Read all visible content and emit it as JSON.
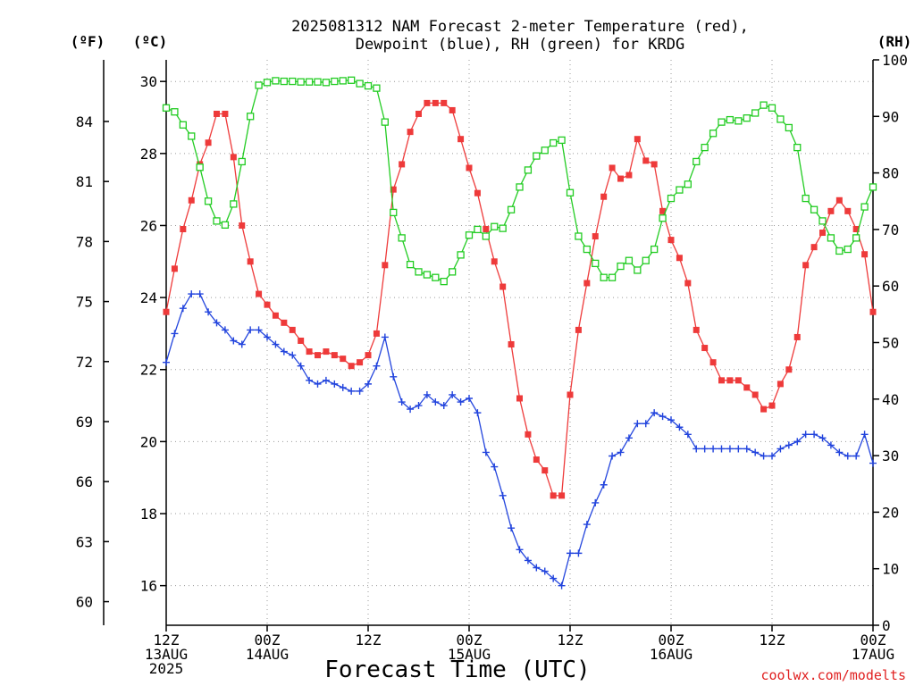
{
  "title_lines": [
    "2025081312 NAM Forecast 2-meter Temperature (red),",
    "Dewpoint (blue), RH (green) for KRDG"
  ],
  "units": {
    "fahrenheit": "(ºF)",
    "celsius": "(ºC)",
    "rh": "(RH)"
  },
  "xlabel": "Forecast Time (UTC)",
  "credit": "coolwx.com/modelts",
  "colors": {
    "temperature": "#ee3a3a",
    "dewpoint": "#2244dd",
    "rh": "#22cc22"
  },
  "chart_data": {
    "type": "line",
    "x_unit": "hours after 2025-08-13 12Z",
    "x_range": [
      0,
      84
    ],
    "x_ticks": [
      {
        "x": 0,
        "lines": [
          "12Z",
          "13AUG",
          "2025"
        ]
      },
      {
        "x": 12,
        "lines": [
          "00Z",
          "14AUG"
        ]
      },
      {
        "x": 24,
        "lines": [
          "12Z"
        ]
      },
      {
        "x": 36,
        "lines": [
          "00Z",
          "15AUG"
        ]
      },
      {
        "x": 48,
        "lines": [
          "12Z"
        ]
      },
      {
        "x": 60,
        "lines": [
          "00Z",
          "16AUG"
        ]
      },
      {
        "x": 72,
        "lines": [
          "12Z"
        ]
      },
      {
        "x": 84,
        "lines": [
          "00Z",
          "17AUG"
        ]
      }
    ],
    "y_celsius": {
      "range": [
        14.9,
        30.6
      ],
      "ticks": [
        16,
        18,
        20,
        22,
        24,
        26,
        28,
        30
      ]
    },
    "y_fahrenheit": {
      "ticks": [
        60,
        63,
        66,
        69,
        72,
        75,
        78,
        81,
        84
      ]
    },
    "y_rh": {
      "range": [
        0,
        100
      ],
      "ticks": [
        0,
        10,
        20,
        30,
        40,
        50,
        60,
        70,
        80,
        90,
        100
      ]
    },
    "grid": true,
    "series": [
      {
        "name": "Temperature",
        "axis": "celsius",
        "marker": "filled-square",
        "points": [
          [
            0,
            23.6
          ],
          [
            1,
            24.8
          ],
          [
            2,
            25.9
          ],
          [
            3,
            26.7
          ],
          [
            4,
            27.7
          ],
          [
            5,
            28.3
          ],
          [
            6,
            29.1
          ],
          [
            7,
            29.1
          ],
          [
            8,
            27.9
          ],
          [
            9,
            26.0
          ],
          [
            10,
            25.0
          ],
          [
            11,
            24.1
          ],
          [
            12,
            23.8
          ],
          [
            13,
            23.5
          ],
          [
            14,
            23.3
          ],
          [
            15,
            23.1
          ],
          [
            16,
            22.8
          ],
          [
            17,
            22.5
          ],
          [
            18,
            22.4
          ],
          [
            19,
            22.5
          ],
          [
            20,
            22.4
          ],
          [
            21,
            22.3
          ],
          [
            22,
            22.1
          ],
          [
            23,
            22.2
          ],
          [
            24,
            22.4
          ],
          [
            25,
            23.0
          ],
          [
            26,
            24.9
          ],
          [
            27,
            27.0
          ],
          [
            28,
            27.7
          ],
          [
            29,
            28.6
          ],
          [
            30,
            29.1
          ],
          [
            31,
            29.4
          ],
          [
            32,
            29.4
          ],
          [
            33,
            29.4
          ],
          [
            34,
            29.2
          ],
          [
            35,
            28.4
          ],
          [
            36,
            27.6
          ],
          [
            37,
            26.9
          ],
          [
            38,
            25.9
          ],
          [
            39,
            25.0
          ],
          [
            40,
            24.3
          ],
          [
            41,
            22.7
          ],
          [
            42,
            21.2
          ],
          [
            43,
            20.2
          ],
          [
            44,
            19.5
          ],
          [
            45,
            19.2
          ],
          [
            46,
            18.5
          ],
          [
            47,
            18.5
          ],
          [
            48,
            21.3
          ],
          [
            49,
            23.1
          ],
          [
            50,
            24.4
          ],
          [
            51,
            25.7
          ],
          [
            52,
            26.8
          ],
          [
            53,
            27.6
          ],
          [
            54,
            27.3
          ],
          [
            55,
            27.4
          ],
          [
            56,
            28.4
          ],
          [
            57,
            27.8
          ],
          [
            58,
            27.7
          ],
          [
            59,
            26.4
          ],
          [
            60,
            25.6
          ],
          [
            61,
            25.1
          ],
          [
            62,
            24.4
          ],
          [
            63,
            23.1
          ],
          [
            64,
            22.6
          ],
          [
            65,
            22.2
          ],
          [
            66,
            21.7
          ],
          [
            67,
            21.7
          ],
          [
            68,
            21.7
          ],
          [
            69,
            21.5
          ],
          [
            70,
            21.3
          ],
          [
            71,
            20.9
          ],
          [
            72,
            21.0
          ],
          [
            73,
            21.6
          ],
          [
            74,
            22.0
          ],
          [
            75,
            22.9
          ],
          [
            76,
            24.9
          ],
          [
            77,
            25.4
          ],
          [
            78,
            25.8
          ],
          [
            79,
            26.4
          ],
          [
            80,
            26.7
          ],
          [
            81,
            26.4
          ],
          [
            82,
            25.9
          ],
          [
            83,
            25.2
          ],
          [
            84,
            23.6
          ]
        ]
      },
      {
        "name": "Dewpoint",
        "axis": "celsius",
        "marker": "plus",
        "points": [
          [
            0,
            22.2
          ],
          [
            1,
            23.0
          ],
          [
            2,
            23.7
          ],
          [
            3,
            24.1
          ],
          [
            4,
            24.1
          ],
          [
            5,
            23.6
          ],
          [
            6,
            23.3
          ],
          [
            7,
            23.1
          ],
          [
            8,
            22.8
          ],
          [
            9,
            22.7
          ],
          [
            10,
            23.1
          ],
          [
            11,
            23.1
          ],
          [
            12,
            22.9
          ],
          [
            13,
            22.7
          ],
          [
            14,
            22.5
          ],
          [
            15,
            22.4
          ],
          [
            16,
            22.1
          ],
          [
            17,
            21.7
          ],
          [
            18,
            21.6
          ],
          [
            19,
            21.7
          ],
          [
            20,
            21.6
          ],
          [
            21,
            21.5
          ],
          [
            22,
            21.4
          ],
          [
            23,
            21.4
          ],
          [
            24,
            21.6
          ],
          [
            25,
            22.1
          ],
          [
            26,
            22.9
          ],
          [
            27,
            21.8
          ],
          [
            28,
            21.1
          ],
          [
            29,
            20.9
          ],
          [
            30,
            21.0
          ],
          [
            31,
            21.3
          ],
          [
            32,
            21.1
          ],
          [
            33,
            21.0
          ],
          [
            34,
            21.3
          ],
          [
            35,
            21.1
          ],
          [
            36,
            21.2
          ],
          [
            37,
            20.8
          ],
          [
            38,
            19.7
          ],
          [
            39,
            19.3
          ],
          [
            40,
            18.5
          ],
          [
            41,
            17.6
          ],
          [
            42,
            17.0
          ],
          [
            43,
            16.7
          ],
          [
            44,
            16.5
          ],
          [
            45,
            16.4
          ],
          [
            46,
            16.2
          ],
          [
            47,
            16.0
          ],
          [
            48,
            16.9
          ],
          [
            49,
            16.9
          ],
          [
            50,
            17.7
          ],
          [
            51,
            18.3
          ],
          [
            52,
            18.8
          ],
          [
            53,
            19.6
          ],
          [
            54,
            19.7
          ],
          [
            55,
            20.1
          ],
          [
            56,
            20.5
          ],
          [
            57,
            20.5
          ],
          [
            58,
            20.8
          ],
          [
            59,
            20.7
          ],
          [
            60,
            20.6
          ],
          [
            61,
            20.4
          ],
          [
            62,
            20.2
          ],
          [
            63,
            19.8
          ],
          [
            64,
            19.8
          ],
          [
            65,
            19.8
          ],
          [
            66,
            19.8
          ],
          [
            67,
            19.8
          ],
          [
            68,
            19.8
          ],
          [
            69,
            19.8
          ],
          [
            70,
            19.7
          ],
          [
            71,
            19.6
          ],
          [
            72,
            19.6
          ],
          [
            73,
            19.8
          ],
          [
            74,
            19.9
          ],
          [
            75,
            20.0
          ],
          [
            76,
            20.2
          ],
          [
            77,
            20.2
          ],
          [
            78,
            20.1
          ],
          [
            79,
            19.9
          ],
          [
            80,
            19.7
          ],
          [
            81,
            19.6
          ],
          [
            82,
            19.6
          ],
          [
            83,
            20.2
          ],
          [
            84,
            19.4
          ]
        ]
      },
      {
        "name": "RH",
        "axis": "rh",
        "marker": "open-square",
        "points": [
          [
            0,
            91.5
          ],
          [
            1,
            90.8
          ],
          [
            2,
            88.5
          ],
          [
            3,
            86.5
          ],
          [
            4,
            81.0
          ],
          [
            5,
            75.0
          ],
          [
            6,
            71.5
          ],
          [
            7,
            70.8
          ],
          [
            8,
            74.5
          ],
          [
            9,
            82.0
          ],
          [
            10,
            90.0
          ],
          [
            11,
            95.5
          ],
          [
            12,
            96.0
          ],
          [
            13,
            96.3
          ],
          [
            14,
            96.2
          ],
          [
            15,
            96.2
          ],
          [
            16,
            96.1
          ],
          [
            17,
            96.1
          ],
          [
            18,
            96.1
          ],
          [
            19,
            96.0
          ],
          [
            20,
            96.2
          ],
          [
            21,
            96.3
          ],
          [
            22,
            96.4
          ],
          [
            23,
            95.8
          ],
          [
            24,
            95.4
          ],
          [
            25,
            95.0
          ],
          [
            26,
            89.0
          ],
          [
            27,
            73.0
          ],
          [
            28,
            68.5
          ],
          [
            29,
            63.8
          ],
          [
            30,
            62.5
          ],
          [
            31,
            62.0
          ],
          [
            32,
            61.5
          ],
          [
            33,
            60.8
          ],
          [
            34,
            62.5
          ],
          [
            35,
            65.5
          ],
          [
            36,
            69.0
          ],
          [
            37,
            70.0
          ],
          [
            38,
            68.8
          ],
          [
            39,
            70.5
          ],
          [
            40,
            70.2
          ],
          [
            41,
            73.5
          ],
          [
            42,
            77.5
          ],
          [
            43,
            80.5
          ],
          [
            44,
            83.0
          ],
          [
            45,
            84.0
          ],
          [
            46,
            85.3
          ],
          [
            47,
            85.8
          ],
          [
            48,
            76.5
          ],
          [
            49,
            68.8
          ],
          [
            50,
            66.5
          ],
          [
            51,
            64.0
          ],
          [
            52,
            61.5
          ],
          [
            53,
            61.5
          ],
          [
            54,
            63.5
          ],
          [
            55,
            64.5
          ],
          [
            56,
            62.8
          ],
          [
            57,
            64.5
          ],
          [
            58,
            66.5
          ],
          [
            59,
            72.0
          ],
          [
            60,
            75.5
          ],
          [
            61,
            77.0
          ],
          [
            62,
            78.0
          ],
          [
            63,
            82.0
          ],
          [
            64,
            84.5
          ],
          [
            65,
            87.0
          ],
          [
            66,
            89.0
          ],
          [
            67,
            89.4
          ],
          [
            68,
            89.2
          ],
          [
            69,
            89.7
          ],
          [
            70,
            90.6
          ],
          [
            71,
            92.0
          ],
          [
            72,
            91.5
          ],
          [
            73,
            89.5
          ],
          [
            74,
            88.0
          ],
          [
            75,
            84.5
          ],
          [
            76,
            75.5
          ],
          [
            77,
            73.5
          ],
          [
            78,
            71.5
          ],
          [
            79,
            68.5
          ],
          [
            80,
            66.2
          ],
          [
            81,
            66.5
          ],
          [
            82,
            68.5
          ],
          [
            83,
            74.0
          ],
          [
            84,
            77.5
          ]
        ]
      }
    ]
  }
}
